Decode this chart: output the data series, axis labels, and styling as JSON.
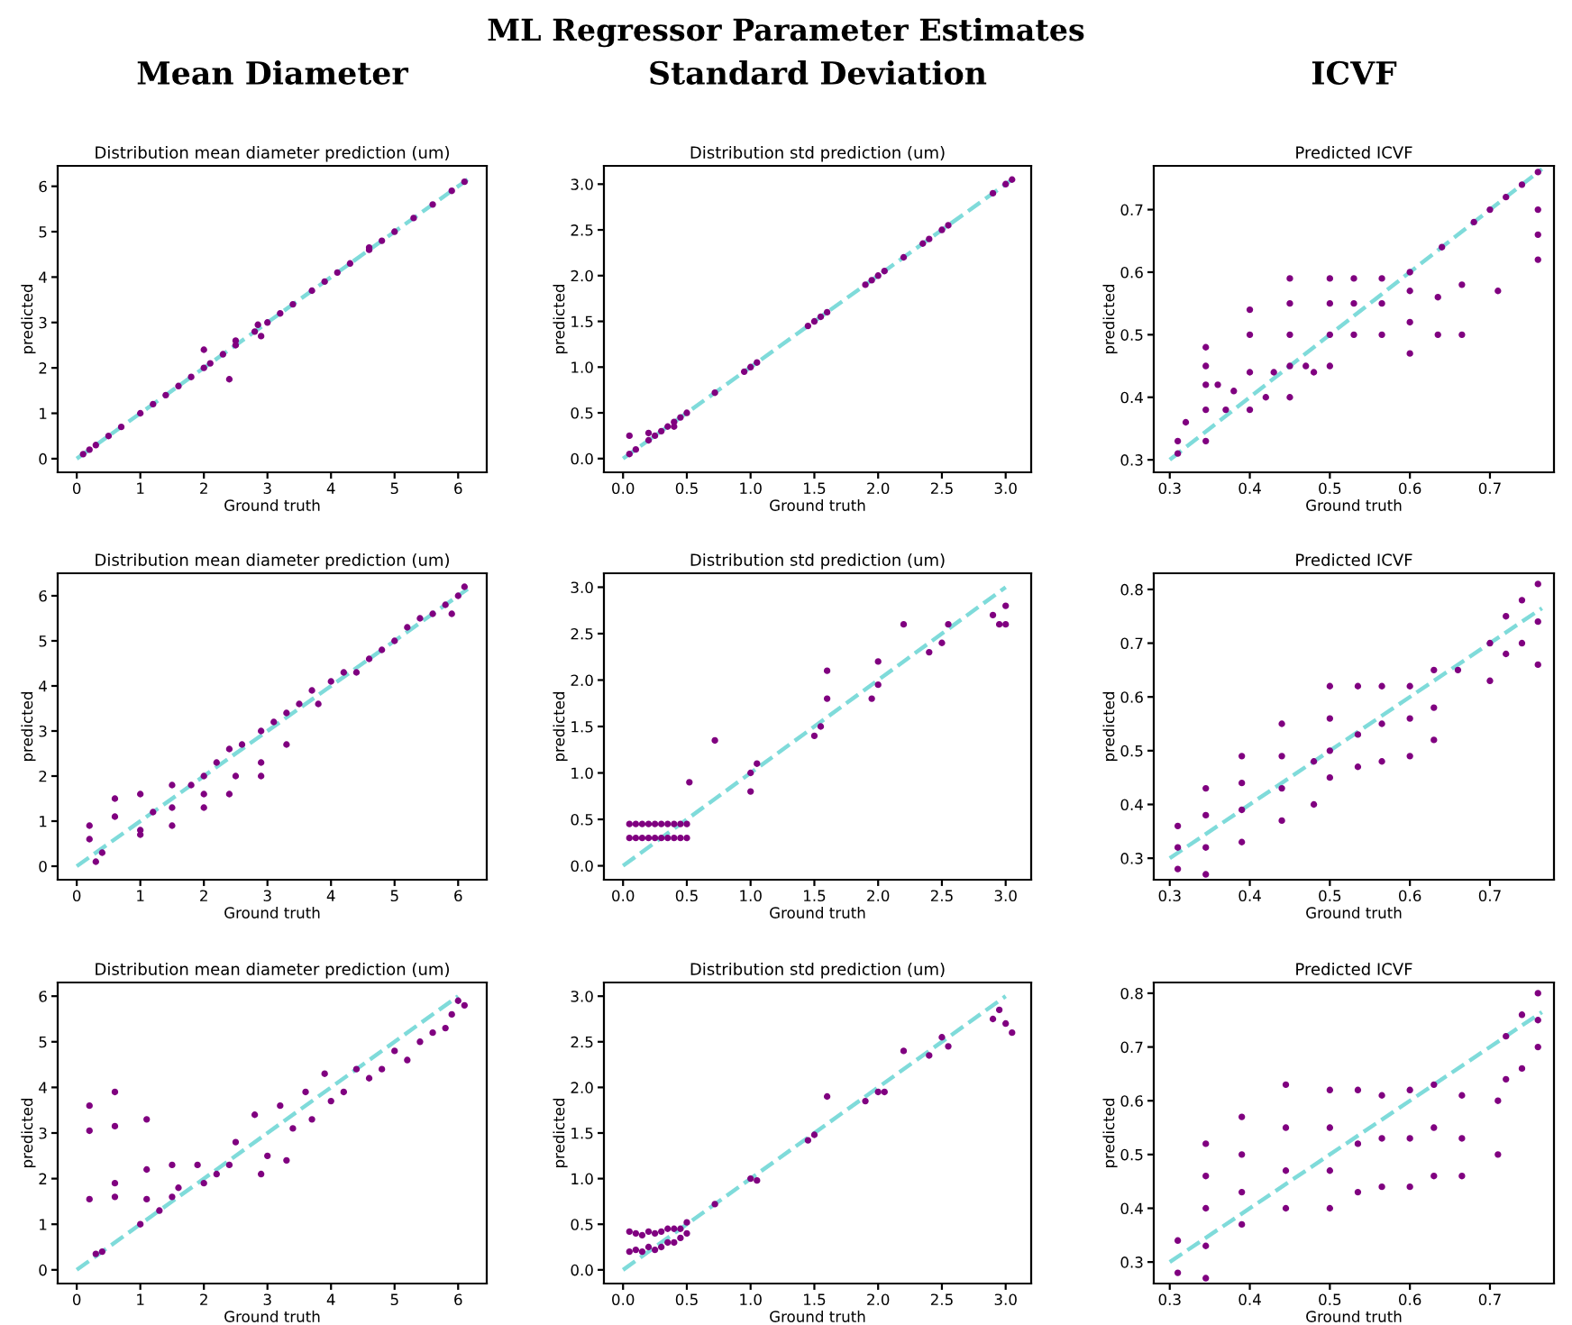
{
  "chart_data": [
    {
      "type": "scatter",
      "title": "Distribution mean diameter prediction (um)",
      "subtitle": "Mean Diameter",
      "annotations": [
        "ML Regressor Parameter Estimates"
      ],
      "xlabel": "Ground truth",
      "ylabel": "predicted",
      "xlim": [
        -0.3,
        6.45
      ],
      "ylim": [
        -0.3,
        6.45
      ],
      "xticks": [
        0,
        1,
        2,
        3,
        4,
        5,
        6
      ],
      "yticks": [
        0,
        1,
        2,
        3,
        4,
        5,
        6
      ],
      "grid": false,
      "series": [
        {
          "type": "line",
          "color": "#7fdbda",
          "line_style": "dashed",
          "x": [
            0,
            6.15
          ],
          "values": [
            0,
            6.15
          ]
        },
        {
          "marker": "circle",
          "color": "#800080",
          "x": [
            0.1,
            0.2,
            0.3,
            0.5,
            0.7,
            1.0,
            1.2,
            1.4,
            1.6,
            1.8,
            2.0,
            2.1,
            2.3,
            2.5,
            2.8,
            3.0,
            3.2,
            3.4,
            3.7,
            3.9,
            4.1,
            4.3,
            4.6,
            4.8,
            5.0,
            5.3,
            5.6,
            5.9,
            6.1,
            2.0,
            2.4,
            2.5,
            2.85,
            2.9,
            4.6
          ],
          "values": [
            0.1,
            0.2,
            0.3,
            0.5,
            0.7,
            1.0,
            1.2,
            1.4,
            1.6,
            1.8,
            2.0,
            2.1,
            2.3,
            2.5,
            2.8,
            3.0,
            3.2,
            3.4,
            3.7,
            3.9,
            4.1,
            4.3,
            4.6,
            4.8,
            5.0,
            5.3,
            5.6,
            5.9,
            6.1,
            2.4,
            1.75,
            2.6,
            2.95,
            2.7,
            4.65
          ]
        }
      ]
    },
    {
      "type": "scatter",
      "title": "Distribution std prediction (um)",
      "subtitle": "Standard Deviation",
      "xlabel": "Ground truth",
      "ylabel": "predicted",
      "xlim": [
        -0.15,
        3.2
      ],
      "ylim": [
        -0.15,
        3.2
      ],
      "xticks": [
        {
          "value": 0,
          "label": "0.0"
        },
        0.5,
        {
          "value": 1,
          "label": "1.0"
        },
        1.5,
        {
          "value": 2,
          "label": "2.0"
        },
        2.5,
        {
          "value": 3,
          "label": "3.0"
        }
      ],
      "yticks": [
        {
          "value": 0,
          "label": "0.0"
        },
        0.5,
        {
          "value": 1,
          "label": "1.0"
        },
        1.5,
        {
          "value": 2,
          "label": "2.0"
        },
        2.5,
        {
          "value": 3,
          "label": "3.0"
        }
      ],
      "grid": false,
      "series": [
        {
          "type": "line",
          "color": "#7fdbda",
          "line_style": "dashed",
          "x": [
            0,
            3.05
          ],
          "values": [
            0,
            3.05
          ]
        },
        {
          "marker": "circle",
          "color": "#800080",
          "x": [
            0.05,
            0.1,
            0.2,
            0.25,
            0.3,
            0.35,
            0.4,
            0.45,
            0.5,
            0.72,
            0.95,
            1.0,
            1.05,
            1.45,
            1.5,
            1.55,
            1.6,
            1.9,
            1.95,
            2.0,
            2.05,
            2.2,
            2.35,
            2.4,
            2.5,
            2.55,
            2.9,
            3.0,
            3.05,
            0.05,
            0.2,
            0.4
          ],
          "values": [
            0.05,
            0.1,
            0.2,
            0.25,
            0.3,
            0.35,
            0.4,
            0.45,
            0.5,
            0.72,
            0.95,
            1.0,
            1.05,
            1.45,
            1.5,
            1.55,
            1.6,
            1.9,
            1.95,
            2.0,
            2.05,
            2.2,
            2.35,
            2.4,
            2.5,
            2.55,
            2.9,
            3.0,
            3.05,
            0.25,
            0.28,
            0.35
          ]
        }
      ]
    },
    {
      "type": "scatter",
      "title": "Predicted ICVF",
      "subtitle": "ICVF",
      "xlabel": "Ground truth",
      "ylabel": "predicted",
      "xlim": [
        0.28,
        0.78
      ],
      "ylim": [
        0.28,
        0.77
      ],
      "xticks": [
        0.3,
        0.4,
        0.5,
        0.6,
        0.7
      ],
      "yticks": [
        0.3,
        0.4,
        0.5,
        0.6,
        0.7
      ],
      "grid": false,
      "series": [
        {
          "type": "line",
          "color": "#7fdbda",
          "line_style": "dashed",
          "x": [
            0.3,
            0.765
          ],
          "values": [
            0.3,
            0.765
          ]
        },
        {
          "marker": "circle",
          "color": "#800080",
          "x": [
            0.31,
            0.31,
            0.32,
            0.345,
            0.345,
            0.345,
            0.345,
            0.345,
            0.36,
            0.37,
            0.38,
            0.4,
            0.4,
            0.4,
            0.4,
            0.42,
            0.43,
            0.45,
            0.45,
            0.45,
            0.45,
            0.45,
            0.47,
            0.48,
            0.5,
            0.5,
            0.5,
            0.5,
            0.53,
            0.53,
            0.53,
            0.565,
            0.565,
            0.565,
            0.6,
            0.6,
            0.6,
            0.6,
            0.635,
            0.635,
            0.665,
            0.665,
            0.71,
            0.64,
            0.68,
            0.7,
            0.72,
            0.74,
            0.76,
            0.76,
            0.76,
            0.76
          ],
          "values": [
            0.31,
            0.33,
            0.36,
            0.33,
            0.38,
            0.42,
            0.45,
            0.48,
            0.42,
            0.38,
            0.41,
            0.38,
            0.44,
            0.5,
            0.54,
            0.4,
            0.44,
            0.4,
            0.45,
            0.5,
            0.55,
            0.59,
            0.45,
            0.44,
            0.45,
            0.5,
            0.55,
            0.59,
            0.5,
            0.55,
            0.59,
            0.5,
            0.55,
            0.59,
            0.47,
            0.52,
            0.57,
            0.6,
            0.5,
            0.56,
            0.5,
            0.58,
            0.57,
            0.64,
            0.68,
            0.7,
            0.72,
            0.74,
            0.76,
            0.7,
            0.66,
            0.62
          ]
        }
      ]
    },
    {
      "type": "scatter",
      "title": "Distribution mean diameter prediction (um)",
      "xlabel": "Ground truth",
      "ylabel": "predicted",
      "xlim": [
        -0.3,
        6.45
      ],
      "ylim": [
        -0.3,
        6.5
      ],
      "xticks": [
        0,
        1,
        2,
        3,
        4,
        5,
        6
      ],
      "yticks": [
        0,
        1,
        2,
        3,
        4,
        5,
        6
      ],
      "grid": false,
      "series": [
        {
          "type": "line",
          "color": "#7fdbda",
          "line_style": "dashed",
          "x": [
            0,
            6.15
          ],
          "values": [
            0,
            6.15
          ]
        },
        {
          "marker": "circle",
          "color": "#800080",
          "x": [
            0.2,
            0.2,
            0.3,
            0.4,
            0.6,
            0.6,
            1.0,
            1.0,
            1.0,
            1.2,
            1.5,
            1.5,
            1.5,
            1.8,
            2.0,
            2.0,
            2.0,
            2.2,
            2.4,
            2.4,
            2.5,
            2.6,
            2.9,
            2.9,
            2.9,
            3.1,
            3.3,
            3.3,
            3.5,
            3.7,
            3.8,
            4.0,
            4.2,
            4.4,
            4.6,
            4.8,
            5.0,
            5.2,
            5.4,
            5.6,
            5.8,
            6.0,
            6.1,
            5.9
          ],
          "values": [
            0.9,
            0.6,
            0.1,
            0.3,
            1.5,
            1.1,
            1.6,
            0.7,
            0.8,
            1.2,
            1.8,
            0.9,
            1.3,
            1.8,
            2.0,
            1.3,
            1.6,
            2.3,
            2.6,
            1.6,
            2.0,
            2.7,
            3.0,
            2.0,
            2.3,
            3.2,
            3.4,
            2.7,
            3.6,
            3.9,
            3.6,
            4.1,
            4.3,
            4.3,
            4.6,
            4.8,
            5.0,
            5.3,
            5.5,
            5.6,
            5.8,
            6.0,
            6.2,
            5.6
          ]
        }
      ]
    },
    {
      "type": "scatter",
      "title": "Distribution std prediction (um)",
      "xlabel": "Ground truth",
      "ylabel": "predicted",
      "xlim": [
        -0.15,
        3.2
      ],
      "ylim": [
        -0.15,
        3.15
      ],
      "xticks": [
        {
          "value": 0,
          "label": "0.0"
        },
        0.5,
        {
          "value": 1,
          "label": "1.0"
        },
        1.5,
        {
          "value": 2,
          "label": "2.0"
        },
        2.5,
        {
          "value": 3,
          "label": "3.0"
        }
      ],
      "yticks": [
        {
          "value": 0,
          "label": "0.0"
        },
        0.5,
        {
          "value": 1,
          "label": "1.0"
        },
        1.5,
        {
          "value": 2,
          "label": "2.0"
        },
        2.5,
        {
          "value": 3,
          "label": "3.0"
        }
      ],
      "grid": false,
      "series": [
        {
          "type": "line",
          "color": "#7fdbda",
          "line_style": "dashed",
          "x": [
            0,
            3.0
          ],
          "values": [
            0,
            3.0
          ]
        },
        {
          "marker": "circle",
          "color": "#800080",
          "x": [
            0.05,
            0.05,
            0.1,
            0.1,
            0.15,
            0.15,
            0.2,
            0.2,
            0.25,
            0.25,
            0.3,
            0.3,
            0.35,
            0.35,
            0.4,
            0.4,
            0.45,
            0.45,
            0.5,
            0.5,
            0.52,
            0.72,
            1.0,
            1.0,
            1.05,
            1.5,
            1.55,
            1.6,
            1.6,
            1.95,
            2.0,
            2.0,
            2.2,
            2.4,
            2.5,
            2.55,
            2.9,
            2.95,
            3.0,
            3.0
          ],
          "values": [
            0.3,
            0.45,
            0.3,
            0.45,
            0.3,
            0.45,
            0.3,
            0.45,
            0.3,
            0.45,
            0.3,
            0.45,
            0.3,
            0.45,
            0.3,
            0.45,
            0.3,
            0.45,
            0.3,
            0.45,
            0.9,
            1.35,
            1.0,
            0.8,
            1.1,
            1.4,
            1.5,
            1.8,
            2.1,
            1.8,
            1.95,
            2.2,
            2.6,
            2.3,
            2.4,
            2.6,
            2.7,
            2.6,
            2.6,
            2.8
          ]
        }
      ]
    },
    {
      "type": "scatter",
      "title": "Predicted ICVF",
      "xlabel": "Ground truth",
      "ylabel": "predicted",
      "xlim": [
        0.28,
        0.78
      ],
      "ylim": [
        0.26,
        0.83
      ],
      "xticks": [
        0.3,
        0.4,
        0.5,
        0.6,
        0.7
      ],
      "yticks": [
        0.3,
        0.4,
        0.5,
        0.6,
        0.7,
        0.8
      ],
      "grid": false,
      "series": [
        {
          "type": "line",
          "color": "#7fdbda",
          "line_style": "dashed",
          "x": [
            0.3,
            0.765
          ],
          "values": [
            0.3,
            0.765
          ]
        },
        {
          "marker": "circle",
          "color": "#800080",
          "x": [
            0.31,
            0.31,
            0.31,
            0.345,
            0.345,
            0.345,
            0.345,
            0.39,
            0.39,
            0.39,
            0.39,
            0.44,
            0.44,
            0.44,
            0.44,
            0.48,
            0.48,
            0.5,
            0.5,
            0.5,
            0.5,
            0.535,
            0.535,
            0.535,
            0.565,
            0.565,
            0.565,
            0.6,
            0.6,
            0.6,
            0.63,
            0.63,
            0.63,
            0.66,
            0.7,
            0.7,
            0.72,
            0.72,
            0.74,
            0.74,
            0.76,
            0.76,
            0.76
          ],
          "values": [
            0.28,
            0.32,
            0.36,
            0.27,
            0.32,
            0.38,
            0.43,
            0.33,
            0.39,
            0.44,
            0.49,
            0.37,
            0.43,
            0.49,
            0.55,
            0.4,
            0.48,
            0.45,
            0.5,
            0.56,
            0.62,
            0.47,
            0.53,
            0.62,
            0.48,
            0.55,
            0.62,
            0.49,
            0.56,
            0.62,
            0.52,
            0.58,
            0.65,
            0.65,
            0.63,
            0.7,
            0.68,
            0.75,
            0.7,
            0.78,
            0.66,
            0.74,
            0.81
          ]
        }
      ]
    },
    {
      "type": "scatter",
      "title": "Distribution mean diameter prediction (um)",
      "xlabel": "Ground truth",
      "ylabel": "predicted",
      "xlim": [
        -0.3,
        6.45
      ],
      "ylim": [
        -0.3,
        6.3
      ],
      "xticks": [
        0,
        1,
        2,
        3,
        4,
        5,
        6
      ],
      "yticks": [
        0,
        1,
        2,
        3,
        4,
        5,
        6
      ],
      "grid": false,
      "series": [
        {
          "type": "line",
          "color": "#7fdbda",
          "line_style": "dashed",
          "x": [
            0,
            6.0
          ],
          "values": [
            0,
            6.0
          ]
        },
        {
          "marker": "circle",
          "color": "#800080",
          "x": [
            0.2,
            0.2,
            0.2,
            0.3,
            0.4,
            0.6,
            0.6,
            0.6,
            0.6,
            1.0,
            1.1,
            1.1,
            1.1,
            1.3,
            1.5,
            1.5,
            1.6,
            1.9,
            2.0,
            2.2,
            2.4,
            2.5,
            2.8,
            2.9,
            3.0,
            3.2,
            3.3,
            3.4,
            3.6,
            3.7,
            3.9,
            4.0,
            4.2,
            4.4,
            4.6,
            4.8,
            5.0,
            5.2,
            5.4,
            5.6,
            5.8,
            5.9,
            6.0,
            6.1
          ],
          "values": [
            3.6,
            3.05,
            1.55,
            0.35,
            0.4,
            3.9,
            3.15,
            1.6,
            1.9,
            1.0,
            3.3,
            2.2,
            1.55,
            1.3,
            2.3,
            1.6,
            1.8,
            2.3,
            1.9,
            2.1,
            2.3,
            2.8,
            3.4,
            2.1,
            2.5,
            3.6,
            2.4,
            3.1,
            3.9,
            3.3,
            4.3,
            3.7,
            3.9,
            4.4,
            4.2,
            4.4,
            4.8,
            4.6,
            5.0,
            5.2,
            5.3,
            5.6,
            5.9,
            5.8
          ]
        }
      ]
    },
    {
      "type": "scatter",
      "title": "Distribution std prediction (um)",
      "xlabel": "Ground truth",
      "ylabel": "predicted",
      "xlim": [
        -0.15,
        3.2
      ],
      "ylim": [
        -0.15,
        3.15
      ],
      "xticks": [
        {
          "value": 0,
          "label": "0.0"
        },
        0.5,
        {
          "value": 1,
          "label": "1.0"
        },
        1.5,
        {
          "value": 2,
          "label": "2.0"
        },
        2.5,
        {
          "value": 3,
          "label": "3.0"
        }
      ],
      "yticks": [
        {
          "value": 0,
          "label": "0.0"
        },
        0.5,
        {
          "value": 1,
          "label": "1.0"
        },
        1.5,
        {
          "value": 2,
          "label": "2.0"
        },
        2.5,
        {
          "value": 3,
          "label": "3.0"
        }
      ],
      "grid": false,
      "series": [
        {
          "type": "line",
          "color": "#7fdbda",
          "line_style": "dashed",
          "x": [
            0,
            3.0
          ],
          "values": [
            0,
            3.0
          ]
        },
        {
          "marker": "circle",
          "color": "#800080",
          "x": [
            0.05,
            0.05,
            0.1,
            0.1,
            0.15,
            0.15,
            0.2,
            0.2,
            0.25,
            0.25,
            0.3,
            0.3,
            0.35,
            0.35,
            0.4,
            0.4,
            0.45,
            0.45,
            0.5,
            0.5,
            0.72,
            1.0,
            1.05,
            1.45,
            1.5,
            1.6,
            1.9,
            2.0,
            2.05,
            2.2,
            2.4,
            2.5,
            2.55,
            2.9,
            2.95,
            3.0,
            3.05
          ],
          "values": [
            0.2,
            0.42,
            0.22,
            0.4,
            0.2,
            0.38,
            0.25,
            0.42,
            0.22,
            0.4,
            0.25,
            0.42,
            0.3,
            0.45,
            0.3,
            0.45,
            0.35,
            0.45,
            0.4,
            0.52,
            0.72,
            1.0,
            0.98,
            1.42,
            1.48,
            1.9,
            1.85,
            1.95,
            1.95,
            2.4,
            2.35,
            2.55,
            2.45,
            2.75,
            2.85,
            2.7,
            2.6
          ]
        }
      ]
    },
    {
      "type": "scatter",
      "title": "Predicted ICVF",
      "xlabel": "Ground truth",
      "ylabel": "predicted",
      "xlim": [
        0.28,
        0.78
      ],
      "ylim": [
        0.26,
        0.82
      ],
      "xticks": [
        0.3,
        0.4,
        0.5,
        0.6,
        0.7
      ],
      "yticks": [
        0.3,
        0.4,
        0.5,
        0.6,
        0.7,
        0.8
      ],
      "grid": false,
      "series": [
        {
          "type": "line",
          "color": "#7fdbda",
          "line_style": "dashed",
          "x": [
            0.3,
            0.765
          ],
          "values": [
            0.3,
            0.765
          ]
        },
        {
          "marker": "circle",
          "color": "#800080",
          "x": [
            0.31,
            0.31,
            0.345,
            0.345,
            0.345,
            0.345,
            0.345,
            0.39,
            0.39,
            0.39,
            0.39,
            0.445,
            0.445,
            0.445,
            0.445,
            0.5,
            0.5,
            0.5,
            0.5,
            0.535,
            0.535,
            0.535,
            0.565,
            0.565,
            0.565,
            0.6,
            0.6,
            0.6,
            0.63,
            0.63,
            0.63,
            0.665,
            0.665,
            0.665,
            0.71,
            0.71,
            0.72,
            0.72,
            0.74,
            0.74,
            0.76,
            0.76,
            0.76
          ],
          "values": [
            0.28,
            0.34,
            0.27,
            0.33,
            0.4,
            0.46,
            0.52,
            0.37,
            0.43,
            0.5,
            0.57,
            0.4,
            0.47,
            0.55,
            0.63,
            0.4,
            0.47,
            0.55,
            0.62,
            0.43,
            0.52,
            0.62,
            0.44,
            0.53,
            0.61,
            0.44,
            0.53,
            0.62,
            0.46,
            0.55,
            0.63,
            0.46,
            0.53,
            0.61,
            0.5,
            0.6,
            0.64,
            0.72,
            0.66,
            0.76,
            0.7,
            0.75,
            0.8
          ]
        }
      ]
    }
  ]
}
